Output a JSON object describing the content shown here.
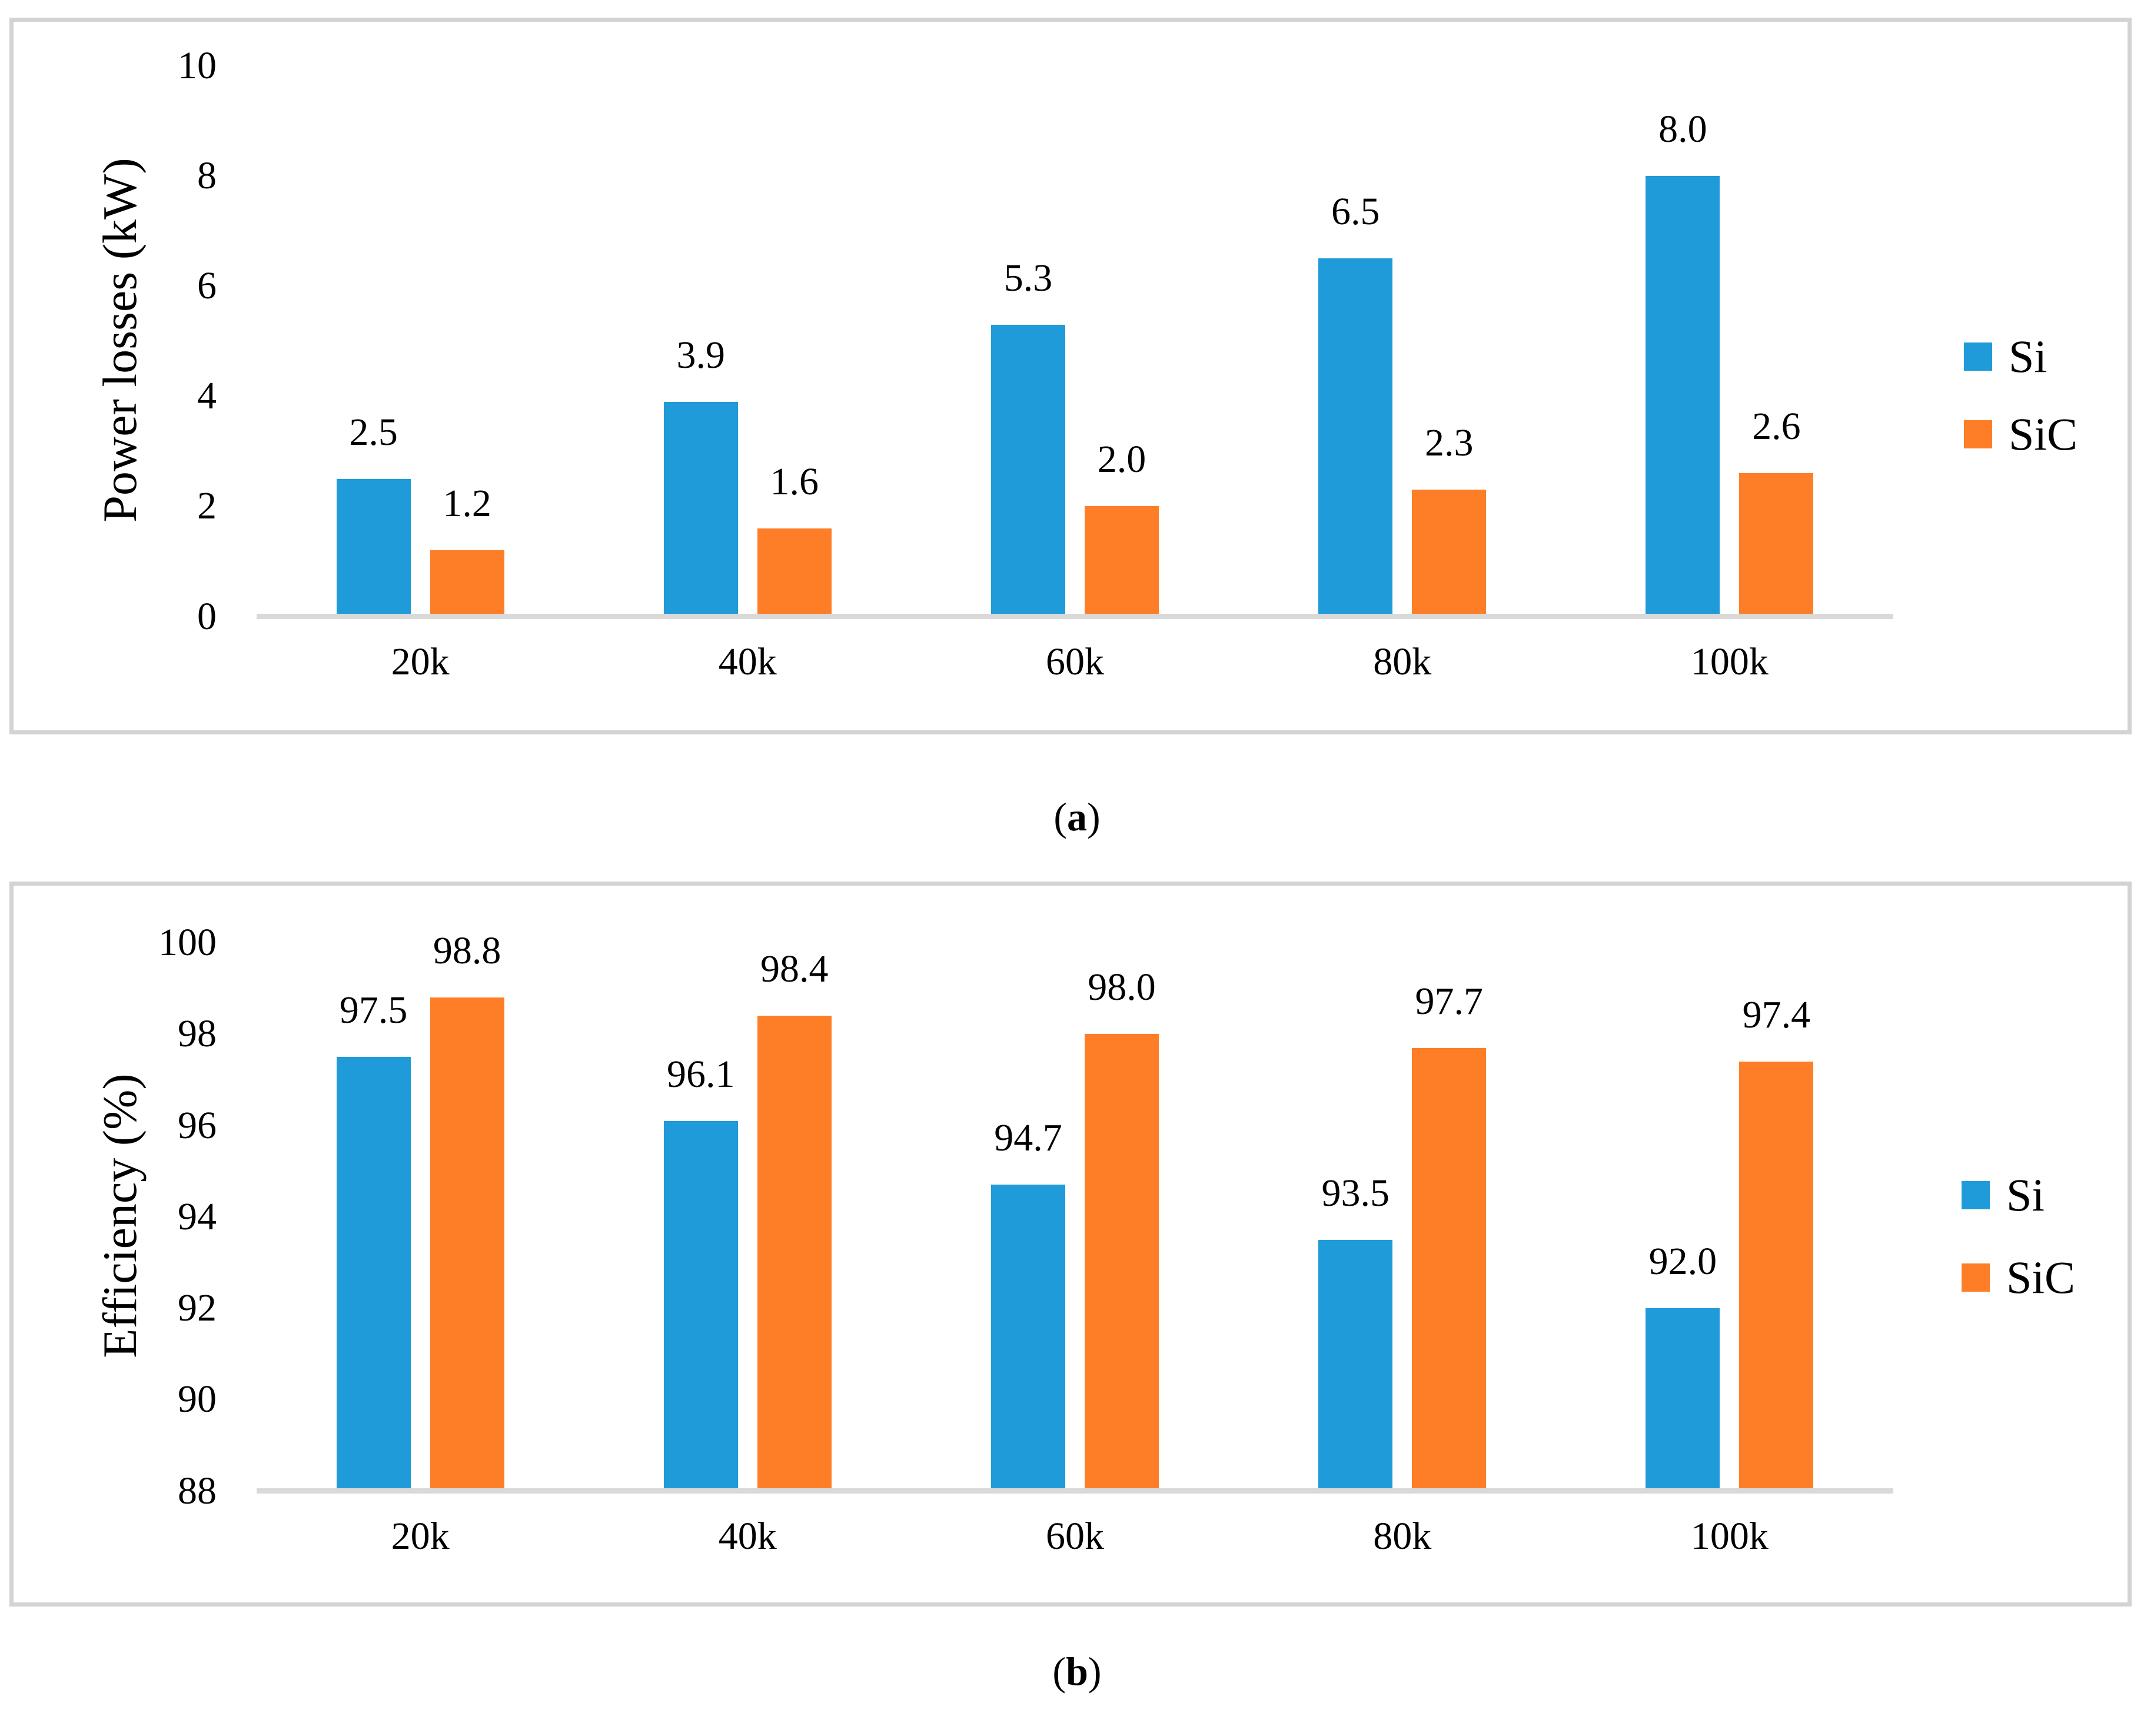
{
  "figure": {
    "captions": {
      "a": {
        "open": "(",
        "letter": "a",
        "close": ")"
      },
      "b": {
        "open": "(",
        "letter": "b",
        "close": ")"
      }
    }
  },
  "colors": {
    "si_blue": "#1E9BD8",
    "sic_orange": "#FD7E27",
    "axis_line": "#D9D9D9",
    "panel_border": "#D3D3D3",
    "text": "#000000"
  },
  "chart_data": [
    {
      "id": "a",
      "type": "bar",
      "title": "",
      "xlabel": "",
      "ylabel": "Power losses (kW)",
      "categories": [
        "20k",
        "40k",
        "60k",
        "80k",
        "100k"
      ],
      "series": [
        {
          "name": "Si",
          "color": "#1E9BD8",
          "values": [
            2.5,
            3.9,
            5.3,
            6.5,
            8.0
          ],
          "labels": [
            "2.5",
            "3.9",
            "5.3",
            "6.5",
            "8.0"
          ]
        },
        {
          "name": "SiC",
          "color": "#FD7E27",
          "values": [
            1.2,
            1.6,
            2.0,
            2.3,
            2.6
          ],
          "labels": [
            "1.2",
            "1.6",
            "2.0",
            "2.3",
            "2.6"
          ]
        }
      ],
      "ylim": [
        0,
        10
      ],
      "yticks": [
        0,
        2,
        4,
        6,
        8,
        10
      ],
      "grid": false,
      "legend_position": "right"
    },
    {
      "id": "b",
      "type": "bar",
      "title": "",
      "xlabel": "",
      "ylabel": "Efficiency (%)",
      "categories": [
        "20k",
        "40k",
        "60k",
        "80k",
        "100k"
      ],
      "series": [
        {
          "name": "Si",
          "color": "#1E9BD8",
          "values": [
            97.5,
            96.1,
            94.7,
            93.5,
            92.0
          ],
          "labels": [
            "97.5",
            "96.1",
            "94.7",
            "93.5",
            "92.0"
          ]
        },
        {
          "name": "SiC",
          "color": "#FD7E27",
          "values": [
            98.8,
            98.4,
            98.0,
            97.7,
            97.4
          ],
          "labels": [
            "98.8",
            "98.4",
            "98.0",
            "97.7",
            "97.4"
          ]
        }
      ],
      "ylim": [
        88,
        100
      ],
      "yticks": [
        88,
        90,
        92,
        94,
        96,
        98,
        100
      ],
      "grid": false,
      "legend_position": "right"
    }
  ]
}
